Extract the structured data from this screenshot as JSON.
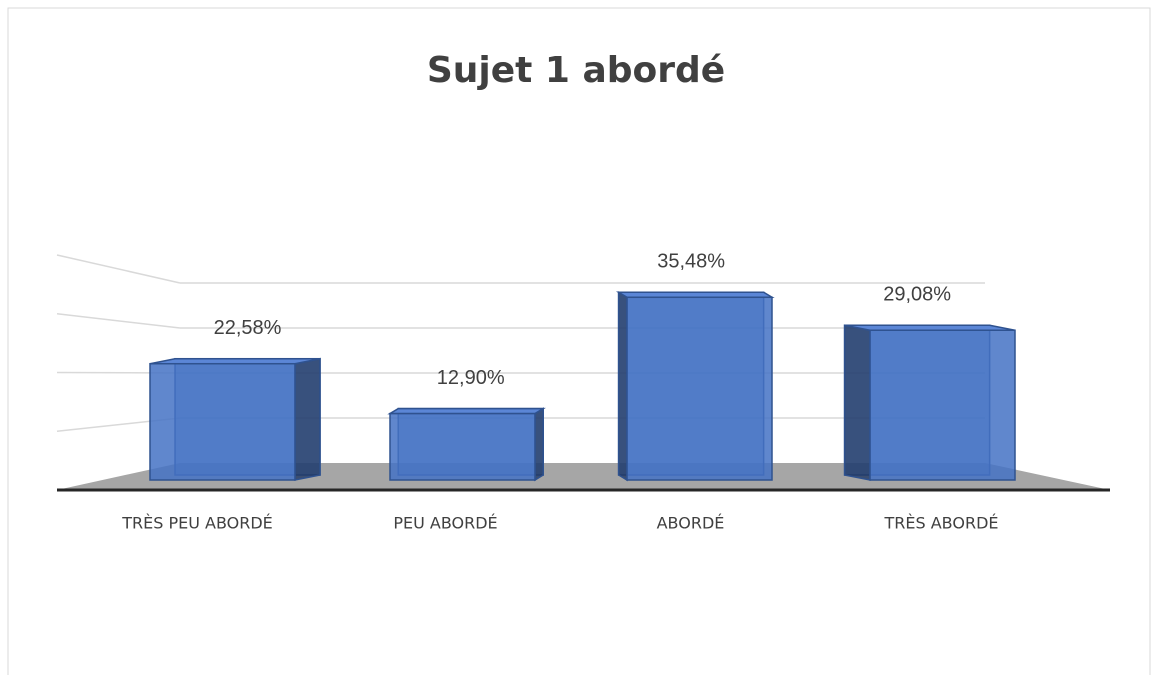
{
  "chart_data": {
    "type": "bar",
    "title": "Sujet 1 abordé",
    "categories": [
      "TRÈS PEU ABORDÉ",
      "PEU ABORDÉ",
      "ABORDÉ",
      "TRÈS ABORDÉ"
    ],
    "values": [
      22.58,
      12.9,
      35.48,
      29.08
    ],
    "value_labels": [
      "22,58%",
      "12,90%",
      "35,48%",
      "29,08%"
    ],
    "color": "#4472c4",
    "ylim": [
      0,
      40
    ],
    "yticks": [
      0,
      10,
      20,
      30,
      40
    ],
    "grid": true
  }
}
